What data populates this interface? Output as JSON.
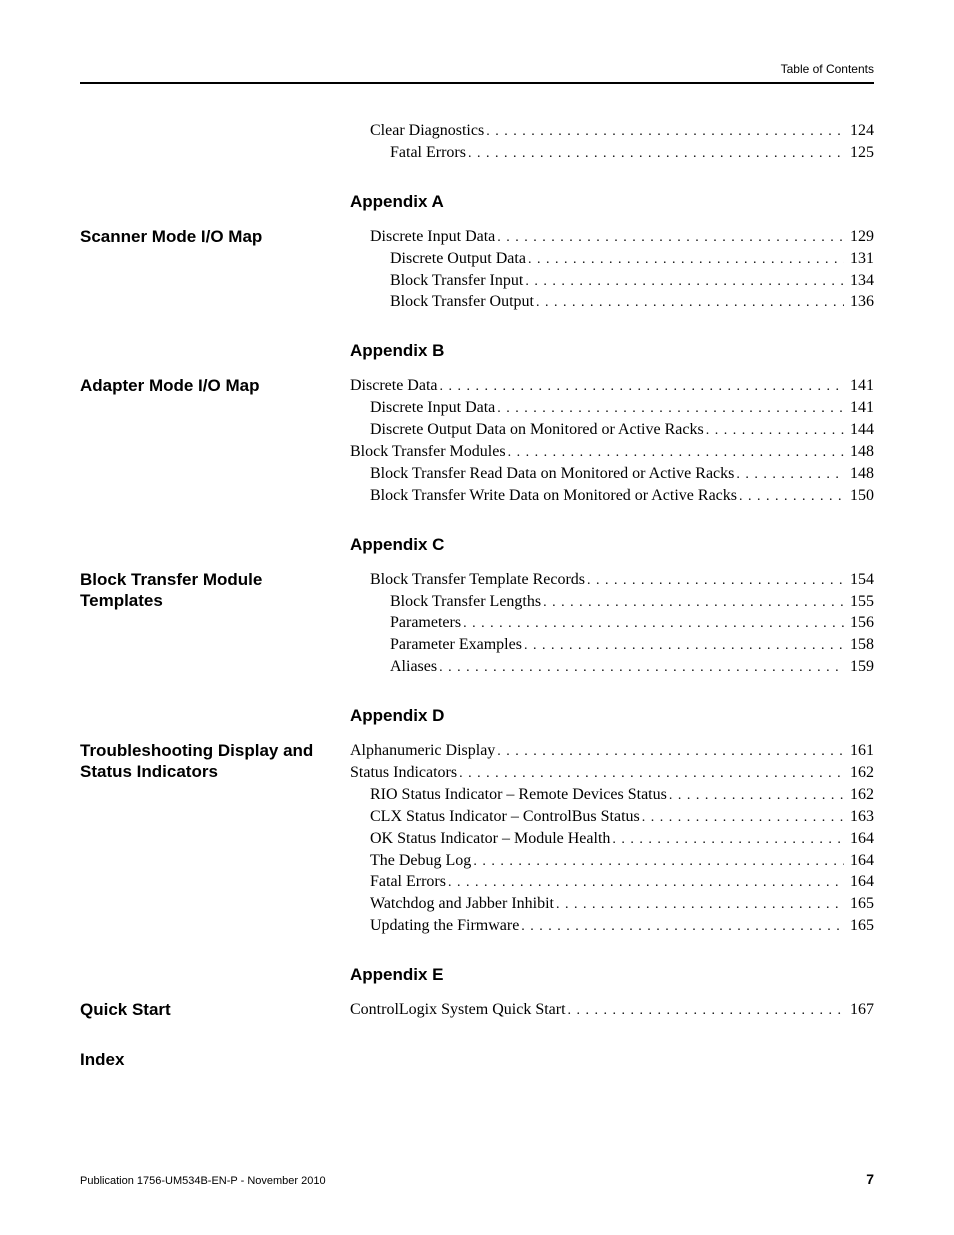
{
  "running_head": "Table of Contents",
  "pre_lines": [
    {
      "title": "Clear Diagnostics",
      "page": "124",
      "indent": 1
    },
    {
      "title": "Fatal Errors",
      "page": "125",
      "indent": 2
    }
  ],
  "sections": [
    {
      "appendix": "Appendix A",
      "left_title": "Scanner Mode I/O Map",
      "lines": [
        {
          "title": "Discrete Input Data",
          "page": "129",
          "indent": 1
        },
        {
          "title": "Discrete Output Data",
          "page": "131",
          "indent": 2
        },
        {
          "title": "Block Transfer Input",
          "page": "134",
          "indent": 2
        },
        {
          "title": "Block Transfer Output",
          "page": "136",
          "indent": 2
        }
      ]
    },
    {
      "appendix": "Appendix B",
      "left_title": "Adapter Mode I/O Map",
      "lines": [
        {
          "title": "Discrete Data",
          "page": "141",
          "indent": 0
        },
        {
          "title": "Discrete Input Data",
          "page": "141",
          "indent": 1
        },
        {
          "title": "Discrete Output Data on Monitored or Active Racks",
          "page": "144",
          "indent": 1
        },
        {
          "title": "Block Transfer Modules",
          "page": "148",
          "indent": 0
        },
        {
          "title": "Block Transfer Read Data on Monitored or Active Racks",
          "page": "148",
          "indent": 1
        },
        {
          "title": "Block Transfer Write Data on Monitored or Active Racks",
          "page": "150",
          "indent": 1
        }
      ]
    },
    {
      "appendix": "Appendix C",
      "left_title": "Block Transfer Module Templates",
      "lines": [
        {
          "title": "Block Transfer Template Records",
          "page": "154",
          "indent": 1
        },
        {
          "title": "Block Transfer Lengths",
          "page": "155",
          "indent": 2
        },
        {
          "title": "Parameters",
          "page": "156",
          "indent": 2
        },
        {
          "title": "Parameter Examples",
          "page": "158",
          "indent": 2
        },
        {
          "title": "Aliases",
          "page": "159",
          "indent": 2
        }
      ]
    },
    {
      "appendix": "Appendix D",
      "left_title": "Troubleshooting Display and Status Indicators",
      "lines": [
        {
          "title": "Alphanumeric Display",
          "page": "161",
          "indent": 0
        },
        {
          "title": "Status Indicators",
          "page": "162",
          "indent": 0
        },
        {
          "title": "RIO Status Indicator – Remote Devices Status",
          "page": "162",
          "indent": 1
        },
        {
          "title": "CLX Status Indicator – ControlBus Status",
          "page": "163",
          "indent": 1
        },
        {
          "title": "OK Status Indicator – Module Health",
          "page": "164",
          "indent": 1
        },
        {
          "title": "The Debug Log",
          "page": "164",
          "indent": 1
        },
        {
          "title": "Fatal Errors",
          "page": "164",
          "indent": 1
        },
        {
          "title": "Watchdog and Jabber Inhibit",
          "page": "165",
          "indent": 1
        },
        {
          "title": "Updating the Firmware",
          "page": "165",
          "indent": 1
        }
      ]
    },
    {
      "appendix": "Appendix E",
      "left_title": "Quick Start",
      "lines": [
        {
          "title": "ControlLogix System Quick Start",
          "page": "167",
          "indent": 0
        }
      ]
    }
  ],
  "index_label": "Index",
  "footer_pub": "Publication 1756-UM534B-EN-P - November 2010",
  "footer_page": "7"
}
